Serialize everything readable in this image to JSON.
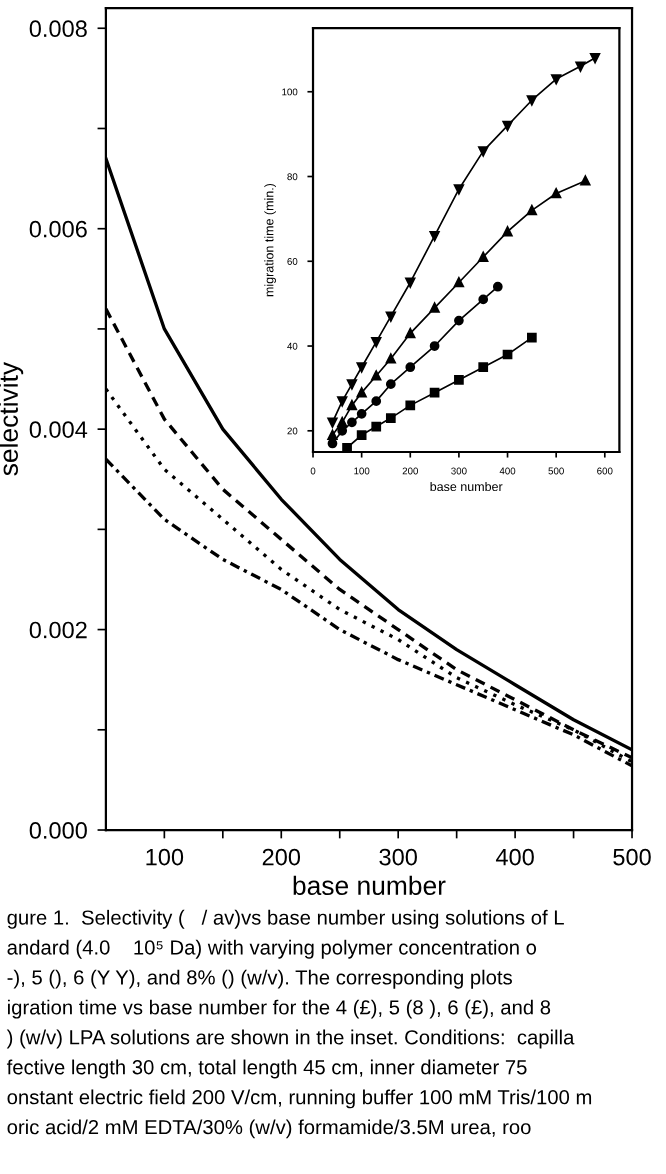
{
  "chart_data": [
    {
      "type": "line",
      "xlabel": "base number",
      "ylabel": "selectivity",
      "x": [
        50,
        100,
        150,
        200,
        250,
        300,
        350,
        400,
        450,
        500
      ],
      "xlim": [
        50,
        500
      ],
      "xticks": [
        100,
        {
          "value": 150,
          "label": null
        },
        200,
        {
          "value": 250,
          "label": null
        },
        300,
        {
          "value": 350,
          "label": null
        },
        400,
        {
          "value": 450,
          "label": null
        },
        500
      ],
      "ylim": [
        0,
        0.0082
      ],
      "yticks": [
        {
          "value": 0,
          "label": "0.000"
        },
        {
          "value": 0.001,
          "label": null
        },
        {
          "value": 0.002,
          "label": "0.002"
        },
        {
          "value": 0.003,
          "label": null
        },
        {
          "value": 0.004,
          "label": "0.004"
        },
        {
          "value": 0.005,
          "label": null
        },
        {
          "value": 0.006,
          "label": "0.006"
        },
        {
          "value": 0.007,
          "label": null
        },
        {
          "value": 0.008,
          "label": "0.008"
        }
      ],
      "grid": false,
      "legend": false,
      "series": [
        {
          "color": "#000000",
          "line_style": "solid",
          "values": [
            0.0067,
            0.005,
            0.004,
            0.0033,
            0.0027,
            0.0022,
            0.0018,
            0.00145,
            0.0011,
            0.0008
          ]
        },
        {
          "color": "#000000",
          "line_style": "dashed",
          "values": [
            0.0052,
            0.0041,
            0.0034,
            0.0029,
            0.0024,
            0.002,
            0.0016,
            0.0013,
            0.001,
            0.00072
          ]
        },
        {
          "color": "#000000",
          "line_style": "dotted",
          "values": [
            0.0044,
            0.0036,
            0.0031,
            0.0026,
            0.0022,
            0.0019,
            0.00152,
            0.00125,
            0.001,
            0.00068
          ]
        },
        {
          "color": "#000000",
          "line_style": "dashdot",
          "values": [
            0.0037,
            0.0031,
            0.0027,
            0.0024,
            0.002,
            0.0017,
            0.00145,
            0.0012,
            0.00095,
            0.00064
          ]
        }
      ],
      "annotations": [
        "gure 1.  Selectivity (   / av)vs base number using solutions of L",
        "andard (4.0    10⁵ Da) with varying polymer concentration o",
        "-), 5 (), 6 (Y Y), and 8% () (w/v). The corresponding plots",
        "igration time vs base number for the 4 (£), 5 (8 ), 6 (£), and 8",
        ") (w/v) LPA solutions are shown in the inset. Conditions:  capilla",
        "fective length 30 cm, total length 45 cm, inner diameter 75",
        "onstant electric field 200 V/cm, running buffer 100 mM Tris/100 m",
        "oric acid/2 mM EDTA/30% (w/v) formamide/3.5M urea, roo"
      ]
    },
    {
      "type": "line",
      "xlabel": "base number",
      "ylabel": "migration time (min.)",
      "xlim": [
        0,
        630
      ],
      "xticks": [
        0,
        100,
        200,
        300,
        400,
        500,
        600
      ],
      "ylim": [
        15,
        115
      ],
      "yticks": [
        20,
        40,
        60,
        80,
        100
      ],
      "grid": false,
      "legend": false,
      "series": [
        {
          "color": "#000000",
          "marker": "triangle_down",
          "x": [
            40,
            60,
            80,
            100,
            130,
            160,
            200,
            250,
            300,
            350,
            400,
            450,
            500,
            550,
            580
          ],
          "values": [
            22,
            27,
            31,
            35,
            41,
            47,
            55,
            66,
            77,
            86,
            92,
            98,
            103,
            106,
            108
          ]
        },
        {
          "color": "#000000",
          "marker": "triangle",
          "x": [
            40,
            60,
            80,
            100,
            130,
            160,
            200,
            250,
            300,
            350,
            400,
            450,
            500,
            560
          ],
          "values": [
            19,
            22,
            26,
            29,
            33,
            37,
            43,
            49,
            55,
            61,
            67,
            72,
            76,
            79
          ]
        },
        {
          "color": "#000000",
          "marker": "circle",
          "x": [
            40,
            60,
            80,
            100,
            130,
            160,
            200,
            250,
            300,
            350,
            380
          ],
          "values": [
            17,
            20,
            22,
            24,
            27,
            31,
            35,
            40,
            46,
            51,
            54
          ]
        },
        {
          "color": "#000000",
          "marker": "square",
          "x": [
            70,
            100,
            130,
            160,
            200,
            250,
            300,
            350,
            400,
            450
          ],
          "values": [
            16,
            19,
            21,
            23,
            26,
            29,
            32,
            35,
            38,
            42
          ]
        }
      ]
    }
  ]
}
